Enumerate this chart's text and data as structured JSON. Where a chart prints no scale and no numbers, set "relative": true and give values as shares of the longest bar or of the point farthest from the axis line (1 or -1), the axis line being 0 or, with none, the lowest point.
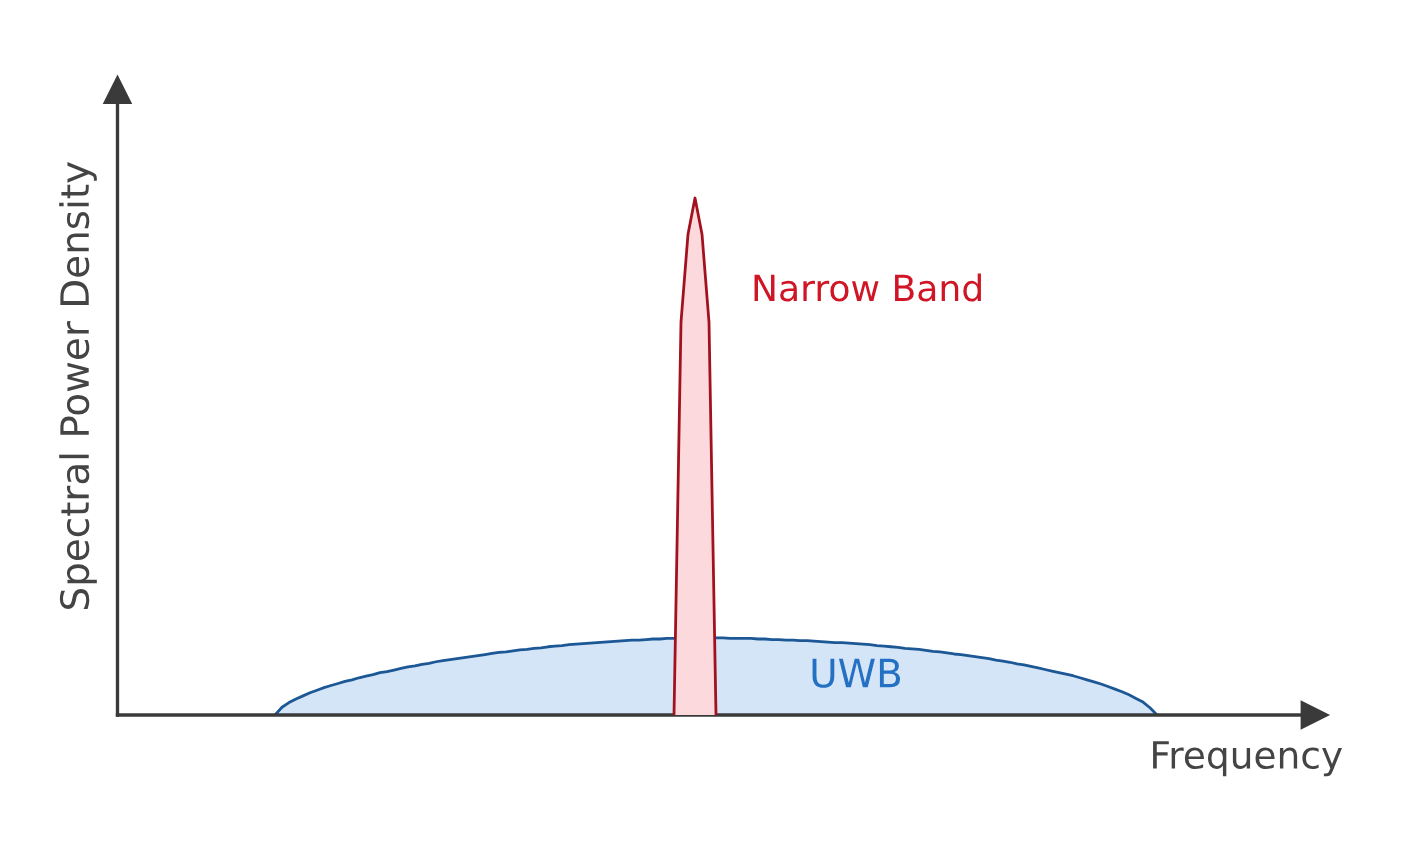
{
  "chart_data": {
    "type": "area",
    "relative": true,
    "xlabel": "Frequency",
    "ylabel": "Spectral Power Density",
    "categories": [
      null,
      null,
      null,
      null,
      null,
      null,
      null,
      null,
      null,
      null,
      null,
      null,
      null,
      null,
      null,
      null,
      null,
      null,
      null,
      null,
      null,
      null,
      null,
      null,
      null,
      null,
      null,
      null,
      null,
      null,
      null,
      null,
      null,
      null,
      null,
      null,
      null,
      null,
      null,
      null,
      null,
      null,
      null,
      null,
      null,
      null,
      null,
      null,
      null,
      null,
      null,
      null,
      null,
      null,
      null,
      null,
      null,
      null,
      null,
      null,
      null,
      null,
      null,
      null,
      null,
      null,
      null,
      null,
      null,
      null,
      null,
      null,
      null,
      null,
      null,
      null,
      null,
      null,
      null,
      null,
      null,
      null,
      null,
      null,
      null,
      null,
      null,
      null,
      null,
      null,
      null,
      null,
      null,
      null,
      null,
      null,
      null,
      null,
      null,
      null,
      null,
      null,
      null,
      null,
      null,
      null,
      null,
      null,
      null,
      null,
      null,
      null,
      null,
      null,
      null,
      null,
      null,
      null,
      null,
      null,
      null,
      null,
      null,
      null,
      null,
      null,
      null,
      null,
      null,
      null,
      null,
      null,
      null,
      null,
      null,
      null,
      null,
      null,
      null,
      null,
      null,
      null,
      null,
      null,
      null,
      null,
      null,
      null,
      null,
      null,
      null,
      null,
      null,
      null,
      null,
      null,
      null,
      null,
      null,
      null,
      null,
      null,
      null,
      null,
      null,
      null,
      null,
      null,
      null,
      null,
      null
    ],
    "series": [
      {
        "name": "UWB",
        "color": "#d4e5f7",
        "values": [
          null,
          null,
          null,
          null,
          null,
          null,
          null,
          null,
          null,
          null,
          null,
          null,
          null,
          null,
          null,
          null,
          null,
          null,
          null,
          null,
          null,
          null,
          0,
          0.015,
          0.024,
          0.031,
          0.037,
          0.043,
          0.048,
          0.053,
          0.057,
          0.061,
          0.065,
          0.068,
          0.072,
          0.075,
          0.078,
          0.082,
          0.084,
          0.087,
          0.09,
          0.093,
          0.095,
          0.098,
          0.1,
          0.103,
          0.105,
          0.107,
          0.109,
          0.111,
          0.113,
          0.115,
          0.117,
          0.119,
          0.121,
          0.122,
          0.124,
          0.126,
          0.127,
          0.129,
          0.13,
          0.132,
          0.133,
          0.134,
          0.136,
          0.137,
          0.138,
          0.139,
          0.14,
          0.141,
          0.142,
          0.143,
          0.144,
          0.145,
          0.145,
          0.146,
          0.147,
          0.147,
          0.148,
          0.148,
          null,
          null,
          null,
          null,
          null,
          0.149,
          0.149,
          0.148,
          0.148,
          0.148,
          0.148,
          0.147,
          0.147,
          0.146,
          0.146,
          0.145,
          0.145,
          0.144,
          0.144,
          0.143,
          0.142,
          0.141,
          0.14,
          0.14,
          0.139,
          0.138,
          0.137,
          0.136,
          0.134,
          0.133,
          0.132,
          0.131,
          0.129,
          0.128,
          0.127,
          0.125,
          0.123,
          0.122,
          0.12,
          0.118,
          0.117,
          0.115,
          0.113,
          0.111,
          0.109,
          0.106,
          0.104,
          0.102,
          0.099,
          0.097,
          0.094,
          0.091,
          0.088,
          0.085,
          0.082,
          0.079,
          0.076,
          0.072,
          0.068,
          0.064,
          0.06,
          0.055,
          0.05,
          0.045,
          0.039,
          0.032,
          0.025,
          0.014,
          0,
          null,
          null,
          null,
          null,
          null,
          null,
          null,
          null,
          null,
          null,
          null,
          null,
          null,
          null,
          null,
          null,
          null,
          null,
          null,
          null,
          null,
          null
        ]
      },
      {
        "name": "Narrow Band",
        "color": "#fbd9dc",
        "values": [
          null,
          null,
          null,
          null,
          null,
          null,
          null,
          null,
          null,
          null,
          null,
          null,
          null,
          null,
          null,
          null,
          null,
          null,
          null,
          null,
          null,
          null,
          null,
          null,
          null,
          null,
          null,
          null,
          null,
          null,
          null,
          null,
          null,
          null,
          null,
          null,
          null,
          null,
          null,
          null,
          null,
          null,
          null,
          null,
          null,
          null,
          null,
          null,
          null,
          null,
          null,
          null,
          null,
          null,
          null,
          null,
          null,
          null,
          null,
          null,
          null,
          null,
          null,
          null,
          null,
          null,
          null,
          null,
          null,
          null,
          null,
          null,
          null,
          null,
          null,
          null,
          null,
          null,
          null,
          0,
          0.76,
          0.93,
          1,
          0.93,
          0.76,
          0,
          null,
          null,
          null,
          null,
          null,
          null,
          null,
          null,
          null,
          null,
          null,
          null,
          null,
          null,
          null,
          null,
          null,
          null,
          null,
          null,
          null,
          null,
          null,
          null,
          null,
          null,
          null,
          null,
          null,
          null,
          null,
          null,
          null,
          null,
          null,
          null,
          null,
          null,
          null,
          null,
          null,
          null,
          null,
          null,
          null,
          null,
          null,
          null,
          null,
          null,
          null,
          null,
          null,
          null,
          null,
          null,
          null,
          null,
          null,
          null,
          null,
          null,
          null,
          null,
          null,
          null,
          null,
          null,
          null,
          null,
          null,
          null,
          null,
          null,
          null,
          null,
          null,
          null,
          null,
          null,
          null,
          null,
          null,
          null,
          null
        ]
      }
    ]
  }
}
